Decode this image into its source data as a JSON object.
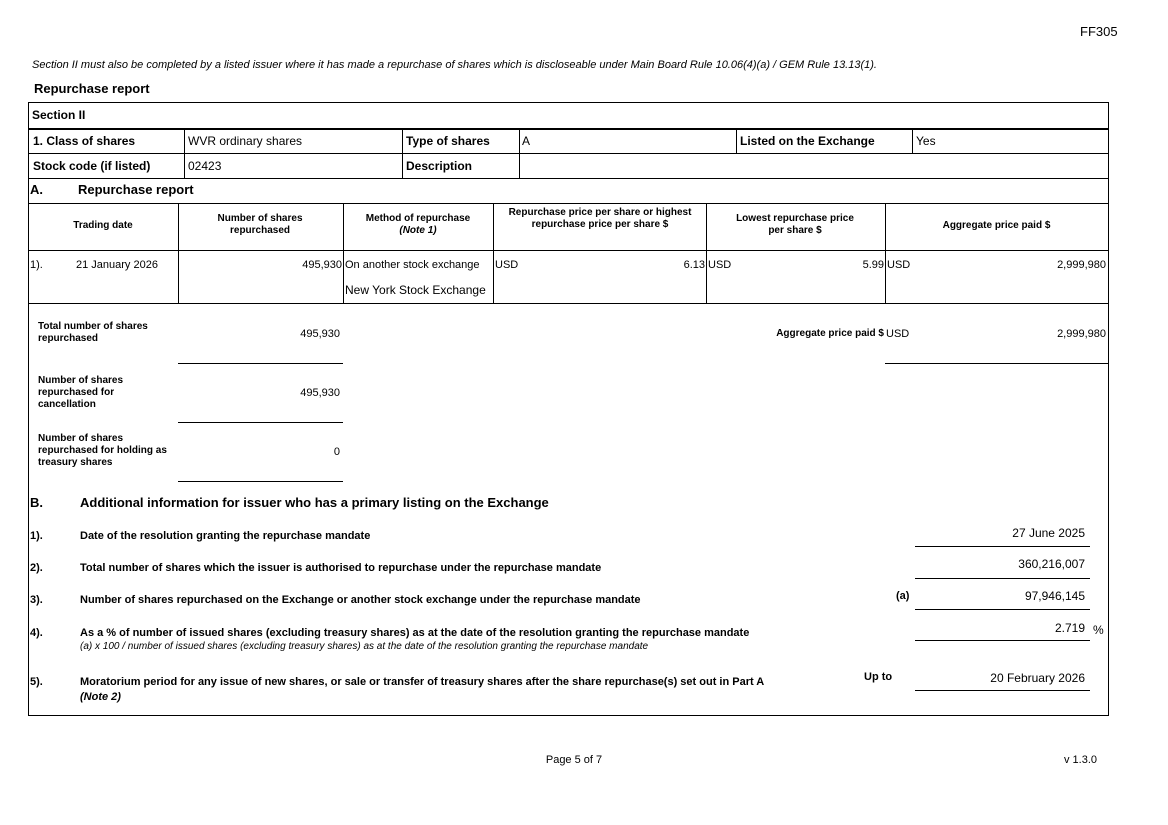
{
  "form_code": "FF305",
  "intro_note": "Section II must also be completed by a listed issuer where it has made a repurchase of shares which is discloseable under Main Board Rule 10.06(4)(a) / GEM Rule 13.13(1).",
  "report_title": "Repurchase report",
  "section_label": "Section II",
  "share_info": {
    "class_label": "1. Class of shares",
    "class_value": "WVR ordinary shares",
    "type_label": "Type of shares",
    "type_value": "A",
    "listed_label": "Listed on the Exchange",
    "listed_value": "Yes",
    "stock_code_label": "Stock code (if listed)",
    "stock_code_value": "02423",
    "description_label": "Description",
    "description_value": ""
  },
  "part_a": {
    "prefix": "A.",
    "title": "Repurchase report",
    "headers": {
      "trading_date": "Trading date",
      "shares": "Number of shares repurchased",
      "method": "Method of repurchase",
      "method_note": "(Note 1)",
      "highest_price": "Repurchase price per share or highest repurchase price per share $",
      "lowest_price": "Lowest repurchase price per share $",
      "aggregate": "Aggregate price paid $"
    },
    "rows": [
      {
        "index": "1).",
        "date": "21 January 2026",
        "shares": "495,930",
        "method": "On another stock exchange",
        "exchange": "New York Stock Exchange",
        "high_currency": "USD",
        "high_price": "6.13",
        "low_currency": "USD",
        "low_price": "5.99",
        "agg_currency": "USD",
        "agg_price": "2,999,980"
      }
    ],
    "totals": {
      "total_label": "Total number of shares repurchased",
      "total_value": "495,930",
      "aggregate_label": "Aggregate price paid $",
      "aggregate_currency": "USD",
      "aggregate_value": "2,999,980",
      "cancellation_label": "Number of shares repurchased for cancellation",
      "cancellation_value": "495,930",
      "treasury_label": "Number of shares repurchased for holding as treasury shares",
      "treasury_value": "0"
    }
  },
  "part_b": {
    "prefix": "B.",
    "title": "Additional information for issuer who has a primary listing on the Exchange",
    "items": [
      {
        "index": "1).",
        "label": "Date of the resolution granting the repurchase mandate",
        "value": "27 June 2025"
      },
      {
        "index": "2).",
        "label": "Total number of shares which the issuer is authorised to repurchase under the repurchase mandate",
        "value": "360,216,007"
      },
      {
        "index": "3).",
        "label": "Number of shares repurchased on the Exchange or another stock exchange under the repurchase mandate",
        "tag": "(a)",
        "value": "97,946,145"
      },
      {
        "index": "4).",
        "label": "As a % of number of issued shares (excluding treasury shares) as at the date of the resolution granting the repurchase mandate",
        "sublabel": "(a) x 100 / number of issued shares (excluding treasury shares) as at the date of the resolution granting the repurchase mandate",
        "value": "2.719",
        "unit": "%"
      },
      {
        "index": "5).",
        "label": "Moratorium period for any issue of new shares, or sale or transfer of treasury shares after the share repurchase(s) set out in Part A",
        "sublabel": "(Note 2)",
        "tag": "Up to",
        "value": "20 February 2026"
      }
    ]
  },
  "footer": {
    "page": "Page 5 of 7",
    "version": "v 1.3.0"
  }
}
